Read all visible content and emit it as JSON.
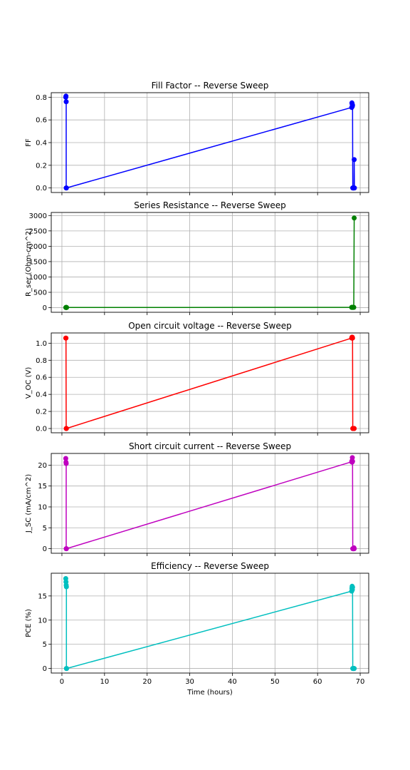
{
  "xlabel": "Time (hours)",
  "x_ticks": [
    0,
    10,
    20,
    30,
    40,
    50,
    60,
    70
  ],
  "xlim": [
    -2.5,
    72
  ],
  "chart_data": [
    {
      "type": "line",
      "title": "Fill Factor -- Reverse Sweep",
      "ylabel": "FF",
      "color": "#0000ff",
      "ylim": [
        -0.04,
        0.84
      ],
      "y_ticks": [
        0.0,
        0.2,
        0.4,
        0.6,
        0.8
      ],
      "y_tick_labels": [
        "0.0",
        "0.2",
        "0.4",
        "0.6",
        "0.8"
      ],
      "x": [
        0.9,
        0.95,
        1.0,
        1.0,
        1.05,
        68.0,
        68.05,
        68.1,
        68.15,
        68.2,
        68.25,
        68.3,
        68.35,
        68.4,
        68.45,
        68.5,
        68.55,
        68.6,
        68.65
      ],
      "y": [
        0.8,
        0.81,
        0.76,
        0.0,
        0.0,
        0.71,
        0.75,
        0.74,
        0.72,
        0.73,
        0.0,
        0.0,
        0.0,
        0.0,
        0.0,
        0.0,
        0.0,
        0.25,
        0.0
      ]
    },
    {
      "type": "line",
      "title": "Series Resistance -- Reverse Sweep",
      "ylabel": "R_ser (Ohm-cm^2)",
      "color": "#008000",
      "ylim": [
        -150,
        3100
      ],
      "y_ticks": [
        0,
        500,
        1000,
        1500,
        2000,
        2500,
        3000
      ],
      "y_tick_labels": [
        "0",
        "500",
        "1000",
        "1500",
        "2000",
        "2500",
        "3000"
      ],
      "x": [
        0.9,
        0.95,
        1.0,
        1.05,
        1.1,
        68.0,
        68.05,
        68.1,
        68.2,
        68.3,
        68.4,
        68.5,
        68.6
      ],
      "y": [
        5,
        5,
        5,
        5,
        5,
        10,
        10,
        10,
        10,
        10,
        10,
        10,
        2920
      ]
    },
    {
      "type": "line",
      "title": "Open circuit voltage -- Reverse Sweep",
      "ylabel": "V_OC (V)",
      "color": "#ff0000",
      "ylim": [
        -0.05,
        1.12
      ],
      "y_ticks": [
        0.0,
        0.2,
        0.4,
        0.6,
        0.8,
        1.0
      ],
      "y_tick_labels": [
        "0.0",
        "0.2",
        "0.4",
        "0.6",
        "0.8",
        "1.0"
      ],
      "x": [
        0.9,
        0.95,
        1.0,
        1.05,
        68.0,
        68.05,
        68.1,
        68.15,
        68.2,
        68.25,
        68.3,
        68.35,
        68.4,
        68.45,
        68.5,
        68.55,
        68.6
      ],
      "y": [
        1.06,
        1.06,
        0.0,
        0.0,
        1.06,
        1.07,
        1.06,
        1.07,
        1.06,
        0.0,
        0.0,
        0.0,
        0.0,
        0.0,
        0.0,
        0.0,
        0.0
      ]
    },
    {
      "type": "line",
      "title": "Short circuit current -- Reverse Sweep",
      "ylabel": "J_SC (mA/cm^2)",
      "color": "#bf00bf",
      "ylim": [
        -1.1,
        22.8
      ],
      "y_ticks": [
        0,
        5,
        10,
        15,
        20
      ],
      "y_tick_labels": [
        "0",
        "5",
        "10",
        "15",
        "20"
      ],
      "x": [
        0.9,
        0.95,
        1.0,
        1.0,
        1.05,
        68.0,
        68.05,
        68.1,
        68.15,
        68.2,
        68.25,
        68.3,
        68.35,
        68.4,
        68.45,
        68.5,
        68.55,
        68.6
      ],
      "y": [
        21.6,
        20.7,
        20.4,
        0.0,
        0.0,
        20.8,
        21.0,
        20.7,
        21.8,
        20.9,
        0.0,
        0.0,
        0.0,
        0.0,
        0.0,
        0.0,
        0.2,
        0.0
      ]
    },
    {
      "type": "line",
      "title": "Efficiency -- Reverse Sweep",
      "ylabel": "PCE (%)",
      "color": "#00bfbf",
      "ylim": [
        -0.95,
        19.7
      ],
      "y_ticks": [
        0,
        5,
        10,
        15
      ],
      "y_tick_labels": [
        "0",
        "5",
        "10",
        "15"
      ],
      "x": [
        0.9,
        0.95,
        1.0,
        1.05,
        1.05,
        1.1,
        68.0,
        68.05,
        68.1,
        68.15,
        68.2,
        68.25,
        68.3,
        68.35,
        68.4,
        68.45,
        68.5,
        68.55,
        68.6
      ],
      "y": [
        18.6,
        17.9,
        17.2,
        16.9,
        0.0,
        0.0,
        16.0,
        16.6,
        17.0,
        16.3,
        16.8,
        0.0,
        0.0,
        0.0,
        0.0,
        0.0,
        0.0,
        0.0,
        0.0
      ]
    }
  ]
}
